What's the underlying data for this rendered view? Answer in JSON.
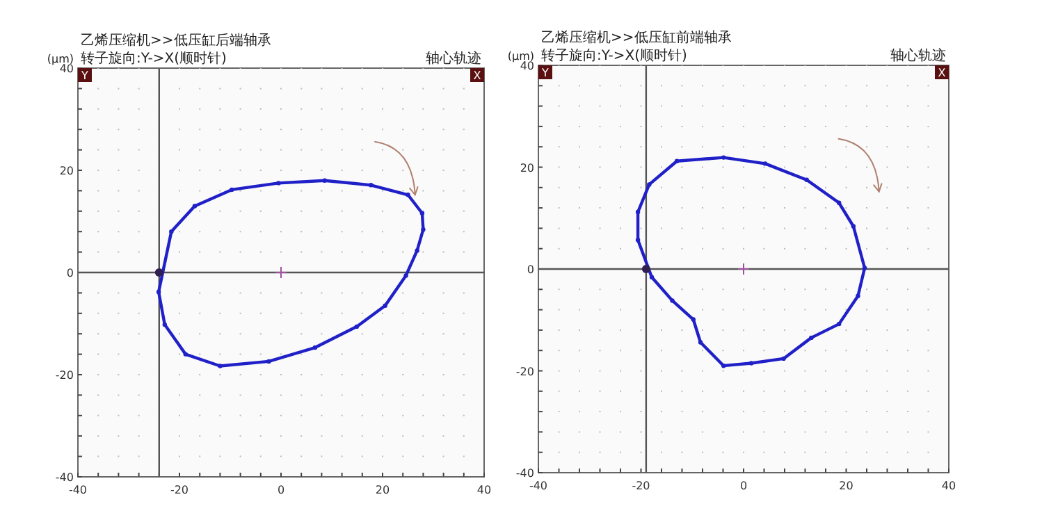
{
  "chart_data": [
    {
      "type": "line",
      "title": "乙烯压缩机>>低压缸后端轴承",
      "subtitle": "转子旋向:Y->X(顺时针)",
      "ylabel": "(μm)",
      "annotations": [
        "轴心轨迹",
        "Y",
        "X"
      ],
      "xlim": [
        -40,
        40
      ],
      "ylim": [
        -40,
        40
      ],
      "xticks": [
        -40,
        -20,
        0,
        20,
        40
      ],
      "yticks": [
        -40,
        -20,
        0,
        20,
        40
      ],
      "grid": true,
      "ref_lines": [
        {
          "axis": "x",
          "value": -24,
          "color": "#555555"
        },
        {
          "axis": "y",
          "value": 0,
          "color": "#555555"
        }
      ],
      "series": [
        {
          "type": "scatter",
          "marker": "circle",
          "line_style": "solid",
          "color": "#2020c8",
          "x": [
            -21.6,
            -17,
            -9.7,
            -0.5,
            8.6,
            17.7,
            25,
            27.8,
            28,
            26.8,
            24.6,
            20.5,
            14.9,
            6.7,
            -2.4,
            -12,
            -18.8,
            -22.9,
            -24.1
          ],
          "values": [
            8,
            13,
            16.2,
            17.5,
            18,
            17.1,
            15.2,
            11.6,
            8.4,
            4.3,
            -0.6,
            -6.5,
            -10.6,
            -14.7,
            -17.4,
            -18.3,
            -16,
            -10.2,
            -3.8
          ]
        },
        {
          "type": "scatter",
          "marker": "cross",
          "color": "#a050a0",
          "x": [
            0
          ],
          "values": [
            0
          ]
        },
        {
          "type": "scatter",
          "marker": "circle",
          "color": "#302050",
          "x": [
            -24
          ],
          "values": [
            0
          ]
        }
      ]
    },
    {
      "type": "line",
      "title": "乙烯压缩机>>低压缸前端轴承",
      "subtitle": "转子旋向:Y->X(顺时针)",
      "ylabel": "(μm)",
      "annotations": [
        "轴心轨迹",
        "Y",
        "X"
      ],
      "xlim": [
        -40,
        40
      ],
      "ylim": [
        -40,
        40
      ],
      "xticks": [
        -40,
        -20,
        0,
        20,
        40
      ],
      "yticks": [
        -40,
        -20,
        0,
        20,
        40
      ],
      "grid": true,
      "ref_lines": [
        {
          "axis": "x",
          "value": -19,
          "color": "#555555"
        },
        {
          "axis": "y",
          "value": 0,
          "color": "#555555"
        }
      ],
      "series": [
        {
          "type": "scatter",
          "marker": "circle",
          "line_style": "solid",
          "color": "#2020c8",
          "x": [
            -20.6,
            -20.6,
            -18.4,
            -13,
            -3.9,
            4.2,
            12.3,
            18.6,
            21.4,
            23.6,
            22.3,
            18.6,
            13.2,
            7.8,
            1.5,
            -3.9,
            -8.4,
            -9.8,
            -13.9,
            -17.9
          ],
          "values": [
            5.7,
            11.2,
            16.6,
            21.2,
            21.9,
            20.7,
            17.5,
            13,
            8.4,
            0.2,
            -5.3,
            -10.8,
            -13.5,
            -17.6,
            -18.5,
            -19,
            -14.4,
            -9.9,
            -6.2,
            -1.6
          ]
        },
        {
          "type": "scatter",
          "marker": "cross",
          "color": "#a050a0",
          "x": [
            0
          ],
          "values": [
            0
          ]
        },
        {
          "type": "scatter",
          "marker": "circle",
          "color": "#302050",
          "x": [
            -19
          ],
          "values": [
            0
          ]
        }
      ]
    }
  ]
}
